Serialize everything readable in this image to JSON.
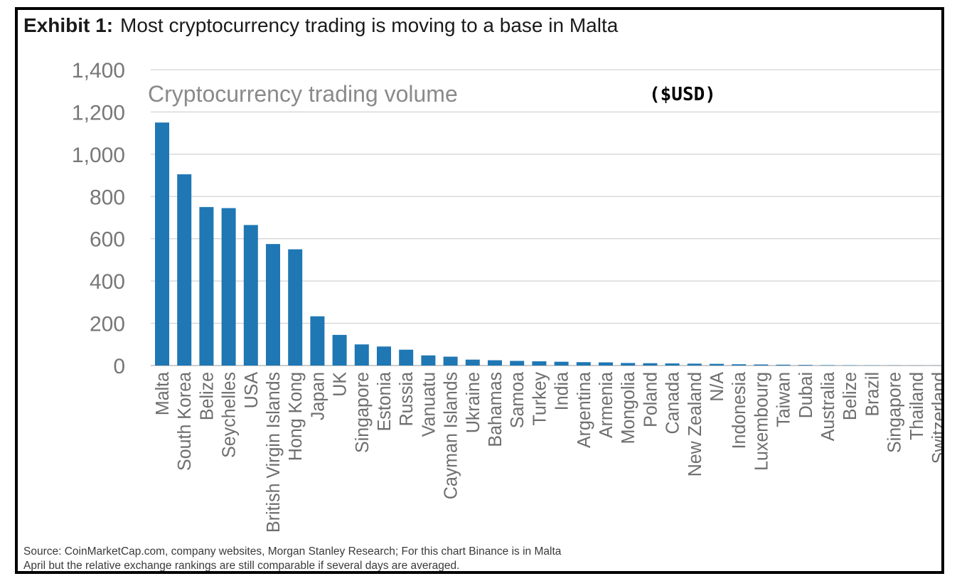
{
  "exhibit": {
    "label": "Exhibit 1:",
    "title": "Most cryptocurrency trading is moving to a base in Malta"
  },
  "chart_data": {
    "type": "bar",
    "title": "Cryptocurrency trading volume",
    "title_annotation": "($USD)",
    "xlabel": "",
    "ylabel": "",
    "ylim": [
      0,
      1400
    ],
    "yticks": [
      0,
      200,
      400,
      600,
      800,
      1000,
      1200,
      1400
    ],
    "ytick_labels": [
      "0",
      "200",
      "400",
      "600",
      "800",
      "1,000",
      "1,200",
      "1,400"
    ],
    "grid": true,
    "legend": "none",
    "bar_color": "#1f77b4",
    "categories": [
      "Malta",
      "South Korea",
      "Belize",
      "Seychelles",
      "USA",
      "British Virgin Islands",
      "Hong Kong",
      "Japan",
      "UK",
      "Singapore",
      "Estonia",
      "Russia",
      "Vanuatu",
      "Cayman Islands",
      "Ukraine",
      "Bahamas",
      "Samoa",
      "Turkey",
      "India",
      "Argentina",
      "Armenia",
      "Mongolia",
      "Poland",
      "Canada",
      "New Zealand",
      "N/A",
      "Indonesia",
      "Luxembourg",
      "Taiwan",
      "Dubai",
      "Australia",
      "Belize",
      "Brazil",
      "Singapore",
      "Thailand",
      "Switzerland"
    ],
    "values": [
      1150,
      905,
      750,
      745,
      665,
      575,
      550,
      233,
      145,
      100,
      90,
      75,
      48,
      42,
      28,
      25,
      22,
      20,
      18,
      16,
      15,
      12,
      11,
      10,
      9,
      8,
      6,
      5,
      4,
      3,
      2,
      1.5,
      1,
      1,
      0.5,
      0.5
    ]
  },
  "source": {
    "line1": "Source: CoinMarketCap.com, company websites, Morgan Stanley Research; For this chart Binance is in Malta",
    "line2": "April but the relative exchange rankings are still comparable if several days are averaged."
  }
}
